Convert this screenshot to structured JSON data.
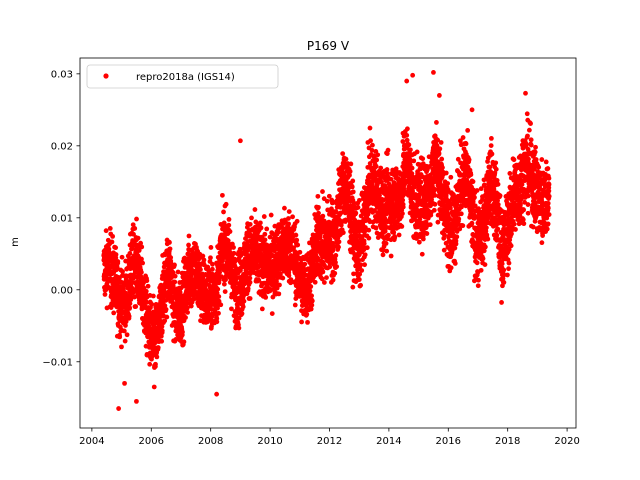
{
  "chart_data": {
    "type": "scatter",
    "title": "P169 V",
    "xlabel": "",
    "ylabel": "m",
    "xlim": [
      2003.6,
      2020.3
    ],
    "ylim": [
      -0.0192,
      0.0322
    ],
    "x_ticks": [
      2004,
      2006,
      2008,
      2010,
      2012,
      2014,
      2016,
      2018,
      2020
    ],
    "x_tick_labels": [
      "2004",
      "2006",
      "2008",
      "2010",
      "2012",
      "2014",
      "2016",
      "2018",
      "2020"
    ],
    "y_ticks": [
      -0.01,
      0.0,
      0.01,
      0.02,
      0.03
    ],
    "y_tick_labels": [
      "−0.01",
      "0.00",
      "0.01",
      "0.02",
      "0.03"
    ],
    "grid": false,
    "legend_position": "top-left",
    "series": [
      {
        "name": "repro2018a (IGS14)",
        "color": "#ff0000",
        "marker": "circle",
        "x": [
          2004.4,
          2004.6,
          2004.8,
          2005.0,
          2005.2,
          2005.4,
          2005.6,
          2005.8,
          2006.0,
          2006.2,
          2006.4,
          2006.6,
          2006.8,
          2007.0,
          2007.2,
          2007.4,
          2007.6,
          2007.8,
          2008.0,
          2008.2,
          2008.4,
          2008.6,
          2008.8,
          2009.0,
          2009.2,
          2009.4,
          2009.6,
          2009.8,
          2010.0,
          2010.2,
          2010.4,
          2010.6,
          2010.8,
          2011.0,
          2011.2,
          2011.4,
          2011.6,
          2011.8,
          2012.0,
          2012.2,
          2012.4,
          2012.6,
          2012.8,
          2013.0,
          2013.2,
          2013.4,
          2013.6,
          2013.8,
          2014.0,
          2014.2,
          2014.4,
          2014.6,
          2014.8,
          2015.0,
          2015.2,
          2015.4,
          2015.6,
          2015.8,
          2016.0,
          2016.2,
          2016.4,
          2016.6,
          2016.8,
          2017.0,
          2017.2,
          2017.4,
          2017.6,
          2017.8,
          2018.0,
          2018.2,
          2018.4,
          2018.6,
          2018.8,
          2019.0,
          2019.2,
          2019.4
        ],
        "y_mean": [
          0.0005,
          0.001,
          0.0015,
          0.001,
          0.0,
          0.002,
          0.0,
          -0.002,
          -0.004,
          -0.006,
          -0.003,
          0.001,
          -0.002,
          0.0,
          0.002,
          0.001,
          -0.001,
          0.0,
          0.002,
          0.001,
          0.004,
          0.003,
          0.001,
          0.003,
          0.005,
          0.003,
          0.002,
          0.004,
          0.006,
          0.005,
          0.003,
          0.004,
          0.006,
          0.004,
          0.001,
          0.0,
          0.005,
          0.007,
          0.01,
          0.008,
          0.011,
          0.012,
          0.009,
          0.008,
          0.011,
          0.013,
          0.011,
          0.012,
          0.015,
          0.013,
          0.011,
          0.016,
          0.014,
          0.015,
          0.013,
          0.012,
          0.016,
          0.014,
          0.012,
          0.01,
          0.012,
          0.014,
          0.011,
          0.009,
          0.01,
          0.013,
          0.01,
          0.006,
          0.011,
          0.014,
          0.012,
          0.015,
          0.017,
          0.016,
          0.013,
          0.011
        ],
        "y_amplitude": [
          0.004,
          0.0045,
          0.0045,
          0.0045,
          0.0045,
          0.0045,
          0.0045,
          0.0045,
          0.0045,
          0.0045,
          0.0045,
          0.0045,
          0.0045,
          0.0045,
          0.0045,
          0.0045,
          0.0045,
          0.0045,
          0.0045,
          0.0045,
          0.0045,
          0.0045,
          0.0045,
          0.0045,
          0.0045,
          0.0045,
          0.0045,
          0.0045,
          0.0045,
          0.0045,
          0.0045,
          0.0045,
          0.0045,
          0.0045,
          0.0045,
          0.0045,
          0.005,
          0.005,
          0.005,
          0.005,
          0.005,
          0.005,
          0.005,
          0.005,
          0.005,
          0.005,
          0.005,
          0.005,
          0.005,
          0.005,
          0.005,
          0.005,
          0.005,
          0.005,
          0.005,
          0.005,
          0.005,
          0.005,
          0.005,
          0.005,
          0.005,
          0.005,
          0.005,
          0.005,
          0.005,
          0.005,
          0.005,
          0.005,
          0.005,
          0.005,
          0.005,
          0.005,
          0.005,
          0.005,
          0.005,
          0.004
        ],
        "outliers": [
          [
            2004.9,
            -0.0165
          ],
          [
            2005.5,
            -0.0155
          ],
          [
            2008.2,
            -0.0145
          ],
          [
            2009.0,
            0.0207
          ],
          [
            2014.6,
            0.029
          ],
          [
            2014.8,
            0.0298
          ],
          [
            2015.5,
            0.0302
          ],
          [
            2015.7,
            0.027
          ],
          [
            2018.6,
            0.0273
          ],
          [
            2016.8,
            0.025
          ],
          [
            2005.1,
            -0.013
          ],
          [
            2006.1,
            -0.0135
          ]
        ]
      }
    ]
  }
}
